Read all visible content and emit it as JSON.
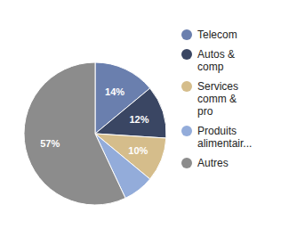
{
  "chart_data": {
    "type": "pie",
    "categories": [
      "Telecom",
      "Autos & comp",
      "Services comm & pro",
      "Produits alimentair...",
      "Autres"
    ],
    "values": [
      14,
      12,
      10,
      7,
      57
    ],
    "value_labels": [
      "14%",
      "12%",
      "10%",
      null,
      "57%"
    ],
    "colors": [
      "#6a7fae",
      "#3a4663",
      "#d5bd8b",
      "#93acda",
      "#8c8c8c"
    ],
    "data_labels": true,
    "legend": "right"
  }
}
